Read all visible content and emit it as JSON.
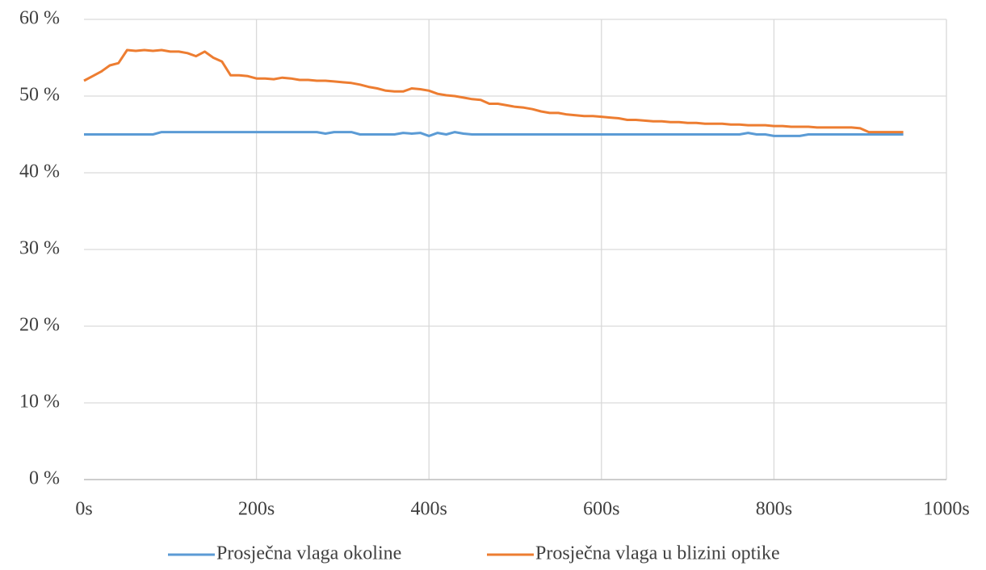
{
  "chart_data": {
    "type": "line",
    "x": [
      0,
      10,
      20,
      30,
      40,
      50,
      60,
      70,
      80,
      90,
      100,
      110,
      120,
      130,
      140,
      150,
      160,
      170,
      180,
      190,
      200,
      210,
      220,
      230,
      240,
      250,
      260,
      270,
      280,
      290,
      300,
      310,
      320,
      330,
      340,
      350,
      360,
      370,
      380,
      390,
      400,
      410,
      420,
      430,
      440,
      450,
      460,
      470,
      480,
      490,
      500,
      510,
      520,
      530,
      540,
      550,
      560,
      570,
      580,
      590,
      600,
      610,
      620,
      630,
      640,
      650,
      660,
      670,
      680,
      690,
      700,
      710,
      720,
      730,
      740,
      750,
      760,
      770,
      780,
      790,
      800,
      810,
      820,
      830,
      840,
      850,
      860,
      870,
      880,
      890,
      900,
      910,
      920,
      930,
      940,
      950
    ],
    "series": [
      {
        "name": "Prosječna vlaga okoline",
        "color": "#5b9bd5",
        "values": [
          45,
          45,
          45,
          45,
          45,
          45,
          45,
          45,
          45,
          45.3,
          45.3,
          45.3,
          45.3,
          45.3,
          45.3,
          45.3,
          45.3,
          45.3,
          45.3,
          45.3,
          45.3,
          45.3,
          45.3,
          45.3,
          45.3,
          45.3,
          45.3,
          45.3,
          45.1,
          45.3,
          45.3,
          45.3,
          45,
          45,
          45,
          45,
          45,
          45.2,
          45.1,
          45.2,
          44.8,
          45.2,
          45,
          45.3,
          45.1,
          45,
          45,
          45,
          45,
          45,
          45,
          45,
          45,
          45,
          45,
          45,
          45,
          45,
          45,
          45,
          45,
          45,
          45,
          45,
          45,
          45,
          45,
          45,
          45,
          45,
          45,
          45,
          45,
          45,
          45,
          45,
          45,
          45.2,
          45,
          45,
          44.8,
          44.8,
          44.8,
          44.8,
          45,
          45,
          45,
          45,
          45,
          45,
          45,
          45,
          45,
          45,
          45,
          45
        ]
      },
      {
        "name": "Prosječna vlaga u blizini optike",
        "color": "#ed7d31",
        "values": [
          52,
          52.6,
          53.2,
          54,
          54.3,
          56,
          55.9,
          56,
          55.9,
          56,
          55.8,
          55.8,
          55.6,
          55.2,
          55.8,
          55,
          54.5,
          52.7,
          52.7,
          52.6,
          52.3,
          52.3,
          52.2,
          52.4,
          52.3,
          52.1,
          52.1,
          52,
          52,
          51.9,
          51.8,
          51.7,
          51.5,
          51.2,
          51,
          50.7,
          50.6,
          50.6,
          51,
          50.9,
          50.7,
          50.3,
          50.1,
          50,
          49.8,
          49.6,
          49.5,
          49,
          49,
          48.8,
          48.6,
          48.5,
          48.3,
          48,
          47.8,
          47.8,
          47.6,
          47.5,
          47.4,
          47.4,
          47.3,
          47.2,
          47.1,
          46.9,
          46.9,
          46.8,
          46.7,
          46.7,
          46.6,
          46.6,
          46.5,
          46.5,
          46.4,
          46.4,
          46.4,
          46.3,
          46.3,
          46.2,
          46.2,
          46.2,
          46.1,
          46.1,
          46,
          46,
          46,
          45.9,
          45.9,
          45.9,
          45.9,
          45.9,
          45.8,
          45.3,
          45.3,
          45.3,
          45.3,
          45.3
        ]
      }
    ],
    "xlim": [
      0,
      1000
    ],
    "xticks": [
      {
        "value": 0,
        "label": "0s"
      },
      {
        "value": 200,
        "label": "200s"
      },
      {
        "value": 400,
        "label": "400s"
      },
      {
        "value": 600,
        "label": "600s"
      },
      {
        "value": 800,
        "label": "800s"
      },
      {
        "value": 1000,
        "label": "1000s"
      }
    ],
    "ylim": [
      0,
      60
    ],
    "yticks": [
      {
        "value": 0,
        "label": "0 %"
      },
      {
        "value": 10,
        "label": "10 %"
      },
      {
        "value": 20,
        "label": "20 %"
      },
      {
        "value": 30,
        "label": "30 %"
      },
      {
        "value": 40,
        "label": "40 %"
      },
      {
        "value": 50,
        "label": "50 %"
      },
      {
        "value": 60,
        "label": "60 %"
      }
    ],
    "grid": true,
    "legend": "bottom"
  }
}
